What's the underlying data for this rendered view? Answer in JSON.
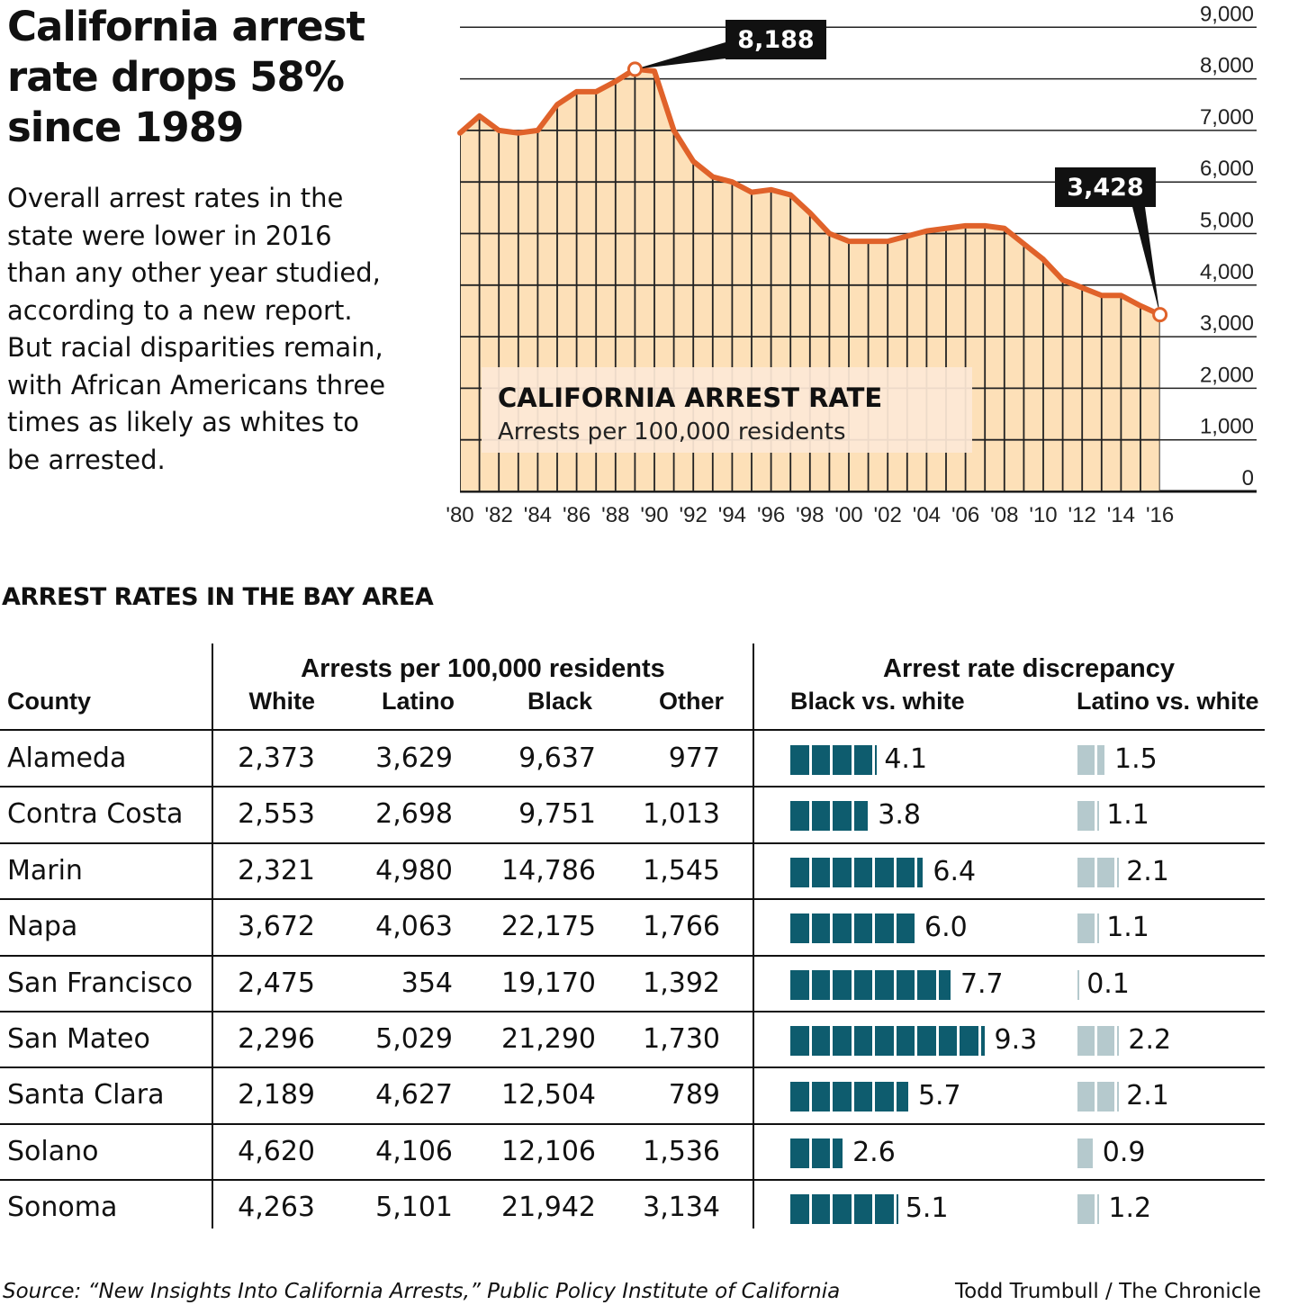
{
  "headline": "California arrest rate drops 58% since 1989",
  "intro": "Overall arrest rates in the state were lower in 2016 than any other year studied, according to a new report. But racial disparities remain, with African Americans three times as likely as whites to be arrested.",
  "colors": {
    "line": "#e0622a",
    "area": "#fde0b8",
    "black_bar": "#0e5c6e",
    "latino_bar": "#b5c9cd",
    "callout_bg": "#111111"
  },
  "chart_data": {
    "type": "area",
    "title": "CALIFORNIA ARREST RATE",
    "subtitle": "Arrests per 100,000 residents",
    "x": [
      1980,
      1981,
      1982,
      1983,
      1984,
      1985,
      1986,
      1987,
      1988,
      1989,
      1990,
      1991,
      1992,
      1993,
      1994,
      1995,
      1996,
      1997,
      1998,
      1999,
      2000,
      2001,
      2002,
      2003,
      2004,
      2005,
      2006,
      2007,
      2008,
      2009,
      2010,
      2011,
      2012,
      2013,
      2014,
      2015,
      2016
    ],
    "values": [
      6950,
      7280,
      7000,
      6950,
      7000,
      7500,
      7750,
      7750,
      7950,
      8188,
      8150,
      7000,
      6400,
      6100,
      6000,
      5800,
      5850,
      5750,
      5400,
      5000,
      4850,
      4850,
      4850,
      4950,
      5050,
      5100,
      5150,
      5150,
      5100,
      4800,
      4500,
      4100,
      3950,
      3800,
      3800,
      3600,
      3428
    ],
    "x_tick_labels": [
      "'80",
      "'82",
      "'84",
      "'86",
      "'88",
      "'90",
      "'92",
      "'94",
      "'96",
      "'98",
      "'00",
      "'02",
      "'04",
      "'06",
      "'08",
      "'10",
      "'12",
      "'14",
      "'16"
    ],
    "y_tick_labels": [
      "0",
      "1,000",
      "2,000",
      "3,000",
      "4,000",
      "5,000",
      "6,000",
      "7,000",
      "8,000",
      "9,000"
    ],
    "ylim": [
      0,
      9000
    ],
    "grid": true,
    "annotations": [
      {
        "year": 1989,
        "label": "8,188"
      },
      {
        "year": 2016,
        "label": "3,428"
      }
    ]
  },
  "table": {
    "title": "ARREST RATES IN THE BAY AREA",
    "group_rates": "Arrests per 100,000 residents",
    "group_discrepancy": "Arrest rate discrepancy",
    "columns": {
      "county": "County",
      "white": "White",
      "latino": "Latino",
      "black": "Black",
      "other": "Other",
      "black_vs_white": "Black vs. white",
      "latino_vs_white": "Latino vs. white"
    },
    "rows": [
      {
        "county": "Alameda",
        "white": "2,373",
        "latino": "3,629",
        "black": "9,637",
        "other": "977",
        "bw": 4.1,
        "bw_label": "4.1",
        "lw": 1.5,
        "lw_label": "1.5"
      },
      {
        "county": "Contra Costa",
        "white": "2,553",
        "latino": "2,698",
        "black": "9,751",
        "other": "1,013",
        "bw": 3.8,
        "bw_label": "3.8",
        "lw": 1.1,
        "lw_label": "1.1"
      },
      {
        "county": "Marin",
        "white": "2,321",
        "latino": "4,980",
        "black": "14,786",
        "other": "1,545",
        "bw": 6.4,
        "bw_label": "6.4",
        "lw": 2.1,
        "lw_label": "2.1"
      },
      {
        "county": "Napa",
        "white": "3,672",
        "latino": "4,063",
        "black": "22,175",
        "other": "1,766",
        "bw": 6.0,
        "bw_label": "6.0",
        "lw": 1.1,
        "lw_label": "1.1"
      },
      {
        "county": "San Francisco",
        "white": "2,475",
        "latino": "354",
        "black": "19,170",
        "other": "1,392",
        "bw": 7.7,
        "bw_label": "7.7",
        "lw": 0.1,
        "lw_label": "0.1"
      },
      {
        "county": "San Mateo",
        "white": "2,296",
        "latino": "5,029",
        "black": "21,290",
        "other": "1,730",
        "bw": 9.3,
        "bw_label": "9.3",
        "lw": 2.2,
        "lw_label": "2.2"
      },
      {
        "county": "Santa Clara",
        "white": "2,189",
        "latino": "4,627",
        "black": "12,504",
        "other": "789",
        "bw": 5.7,
        "bw_label": "5.7",
        "lw": 2.1,
        "lw_label": "2.1"
      },
      {
        "county": "Solano",
        "white": "4,620",
        "latino": "4,106",
        "black": "12,106",
        "other": "1,536",
        "bw": 2.6,
        "bw_label": "2.6",
        "lw": 0.9,
        "lw_label": "0.9"
      },
      {
        "county": "Sonoma",
        "white": "4,263",
        "latino": "5,101",
        "black": "21,942",
        "other": "3,134",
        "bw": 5.1,
        "bw_label": "5.1",
        "lw": 1.2,
        "lw_label": "1.2"
      }
    ]
  },
  "footer": {
    "source": "Source: “New Insights Into California Arrests,” Public Policy Institute of California",
    "credit": "Todd Trumbull / The Chronicle"
  }
}
